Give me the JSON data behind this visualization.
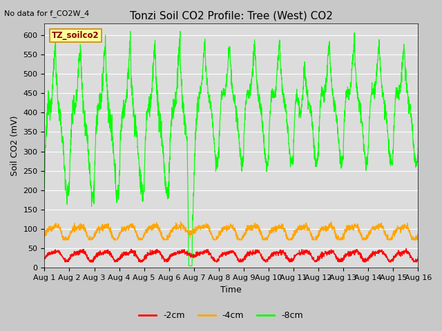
{
  "title": "Tonzi Soil CO2 Profile: Tree (West) CO2",
  "no_data_text": "No data for f_CO2W_4",
  "ylabel": "Soil CO2 (mV)",
  "xlabel": "Time",
  "ylim": [
    0,
    630
  ],
  "yticks": [
    0,
    50,
    100,
    150,
    200,
    250,
    300,
    350,
    400,
    450,
    500,
    550,
    600
  ],
  "xticklabels": [
    "Aug 1",
    "Aug 2",
    "Aug 3",
    "Aug 4",
    "Aug 5",
    "Aug 6",
    "Aug 7",
    "Aug 8",
    "Aug 9",
    "Aug 10",
    "Aug 11",
    "Aug 12",
    "Aug 13",
    "Aug 14",
    "Aug 15",
    "Aug 16"
  ],
  "color_2cm": "#ff0000",
  "color_4cm": "#ffa500",
  "color_8cm": "#00ff00",
  "label_2cm": "-2cm",
  "label_4cm": "-4cm",
  "label_8cm": "-8cm",
  "plot_bg_color": "#dcdcdc",
  "fig_bg_color": "#c8c8c8",
  "legend_box_color": "#ffff99",
  "legend_box_text": "TZ_soilco2",
  "title_fontsize": 11,
  "axis_fontsize": 9,
  "tick_fontsize": 8
}
